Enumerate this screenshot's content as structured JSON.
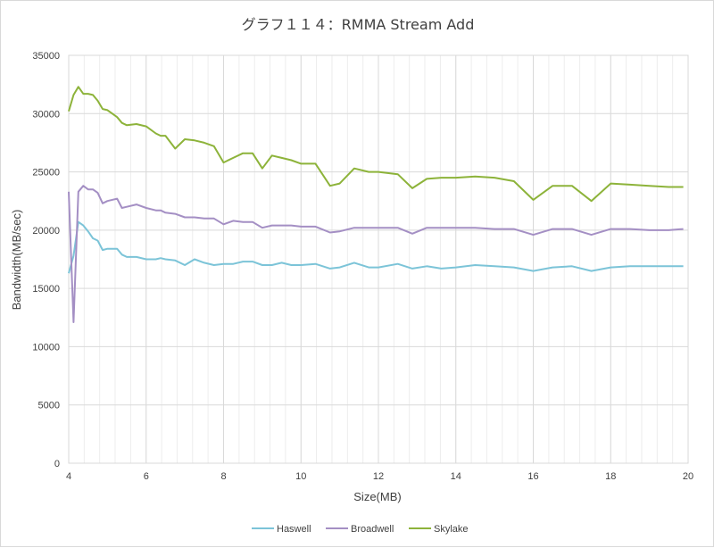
{
  "chart_data": {
    "type": "line",
    "title": "グラフ１１４：RMMA Stream Add",
    "xlabel": "Size(MB)",
    "ylabel": "Bandwidth(MB/sec)",
    "xlim": [
      4,
      20
    ],
    "ylim": [
      0,
      35000
    ],
    "x_ticks": [
      4,
      6,
      8,
      10,
      12,
      14,
      16,
      18,
      20
    ],
    "y_ticks": [
      0,
      5000,
      10000,
      15000,
      20000,
      25000,
      30000,
      35000
    ],
    "grid": true,
    "legend_position": "bottom",
    "series": [
      {
        "name": "Haswell",
        "color": "#7cc4d8",
        "points": [
          [
            4.0,
            16300
          ],
          [
            4.125,
            17800
          ],
          [
            4.25,
            20700
          ],
          [
            4.375,
            20400
          ],
          [
            4.5,
            19900
          ],
          [
            4.625,
            19300
          ],
          [
            4.75,
            19100
          ],
          [
            4.875,
            18300
          ],
          [
            5.0,
            18400
          ],
          [
            5.25,
            18400
          ],
          [
            5.375,
            17900
          ],
          [
            5.5,
            17700
          ],
          [
            5.75,
            17700
          ],
          [
            6.0,
            17500
          ],
          [
            6.25,
            17500
          ],
          [
            6.375,
            17600
          ],
          [
            6.5,
            17500
          ],
          [
            6.75,
            17400
          ],
          [
            7.0,
            17000
          ],
          [
            7.25,
            17500
          ],
          [
            7.5,
            17200
          ],
          [
            7.75,
            17000
          ],
          [
            8.0,
            17100
          ],
          [
            8.25,
            17100
          ],
          [
            8.5,
            17300
          ],
          [
            8.75,
            17300
          ],
          [
            9.0,
            17000
          ],
          [
            9.25,
            17000
          ],
          [
            9.5,
            17200
          ],
          [
            9.75,
            17000
          ],
          [
            10.0,
            17000
          ],
          [
            10.375,
            17100
          ],
          [
            10.75,
            16700
          ],
          [
            11.0,
            16800
          ],
          [
            11.375,
            17200
          ],
          [
            11.75,
            16800
          ],
          [
            12.0,
            16800
          ],
          [
            12.5,
            17100
          ],
          [
            12.875,
            16700
          ],
          [
            13.25,
            16900
          ],
          [
            13.625,
            16700
          ],
          [
            14.0,
            16800
          ],
          [
            14.5,
            17000
          ],
          [
            15.0,
            16900
          ],
          [
            15.5,
            16800
          ],
          [
            16.0,
            16500
          ],
          [
            16.5,
            16800
          ],
          [
            17.0,
            16900
          ],
          [
            17.5,
            16500
          ],
          [
            18.0,
            16800
          ],
          [
            18.5,
            16900
          ],
          [
            19.0,
            16900
          ],
          [
            19.5,
            16900
          ],
          [
            19.875,
            16900
          ]
        ]
      },
      {
        "name": "Broadwell",
        "color": "#a48fc4",
        "points": [
          [
            4.0,
            23300
          ],
          [
            4.125,
            12100
          ],
          [
            4.25,
            23300
          ],
          [
            4.375,
            23800
          ],
          [
            4.5,
            23500
          ],
          [
            4.625,
            23500
          ],
          [
            4.75,
            23200
          ],
          [
            4.875,
            22300
          ],
          [
            5.0,
            22500
          ],
          [
            5.25,
            22700
          ],
          [
            5.375,
            21900
          ],
          [
            5.5,
            22000
          ],
          [
            5.75,
            22200
          ],
          [
            6.0,
            21900
          ],
          [
            6.25,
            21700
          ],
          [
            6.375,
            21700
          ],
          [
            6.5,
            21500
          ],
          [
            6.75,
            21400
          ],
          [
            7.0,
            21100
          ],
          [
            7.25,
            21100
          ],
          [
            7.5,
            21000
          ],
          [
            7.75,
            21000
          ],
          [
            8.0,
            20500
          ],
          [
            8.25,
            20800
          ],
          [
            8.5,
            20700
          ],
          [
            8.75,
            20700
          ],
          [
            9.0,
            20200
          ],
          [
            9.25,
            20400
          ],
          [
            9.5,
            20400
          ],
          [
            9.75,
            20400
          ],
          [
            10.0,
            20300
          ],
          [
            10.375,
            20300
          ],
          [
            10.75,
            19800
          ],
          [
            11.0,
            19900
          ],
          [
            11.375,
            20200
          ],
          [
            11.75,
            20200
          ],
          [
            12.0,
            20200
          ],
          [
            12.5,
            20200
          ],
          [
            12.875,
            19700
          ],
          [
            13.25,
            20200
          ],
          [
            13.625,
            20200
          ],
          [
            14.0,
            20200
          ],
          [
            14.5,
            20200
          ],
          [
            15.0,
            20100
          ],
          [
            15.5,
            20100
          ],
          [
            16.0,
            19600
          ],
          [
            16.5,
            20100
          ],
          [
            17.0,
            20100
          ],
          [
            17.5,
            19600
          ],
          [
            18.0,
            20100
          ],
          [
            18.5,
            20100
          ],
          [
            19.0,
            20000
          ],
          [
            19.5,
            20000
          ],
          [
            19.875,
            20100
          ]
        ]
      },
      {
        "name": "Skylake",
        "color": "#8db33a",
        "points": [
          [
            4.0,
            30200
          ],
          [
            4.125,
            31600
          ],
          [
            4.25,
            32300
          ],
          [
            4.375,
            31700
          ],
          [
            4.5,
            31700
          ],
          [
            4.625,
            31600
          ],
          [
            4.75,
            31100
          ],
          [
            4.875,
            30400
          ],
          [
            5.0,
            30300
          ],
          [
            5.25,
            29700
          ],
          [
            5.375,
            29200
          ],
          [
            5.5,
            29000
          ],
          [
            5.75,
            29100
          ],
          [
            6.0,
            28900
          ],
          [
            6.25,
            28300
          ],
          [
            6.375,
            28100
          ],
          [
            6.5,
            28100
          ],
          [
            6.75,
            27000
          ],
          [
            7.0,
            27800
          ],
          [
            7.25,
            27700
          ],
          [
            7.5,
            27500
          ],
          [
            7.75,
            27200
          ],
          [
            8.0,
            25800
          ],
          [
            8.25,
            26200
          ],
          [
            8.5,
            26600
          ],
          [
            8.75,
            26600
          ],
          [
            9.0,
            25300
          ],
          [
            9.25,
            26400
          ],
          [
            9.5,
            26200
          ],
          [
            9.75,
            26000
          ],
          [
            10.0,
            25700
          ],
          [
            10.375,
            25700
          ],
          [
            10.75,
            23800
          ],
          [
            11.0,
            24000
          ],
          [
            11.375,
            25300
          ],
          [
            11.75,
            25000
          ],
          [
            12.0,
            25000
          ],
          [
            12.5,
            24800
          ],
          [
            12.875,
            23600
          ],
          [
            13.25,
            24400
          ],
          [
            13.625,
            24500
          ],
          [
            14.0,
            24500
          ],
          [
            14.5,
            24600
          ],
          [
            15.0,
            24500
          ],
          [
            15.5,
            24200
          ],
          [
            16.0,
            22600
          ],
          [
            16.5,
            23800
          ],
          [
            17.0,
            23800
          ],
          [
            17.5,
            22500
          ],
          [
            18.0,
            24000
          ],
          [
            18.5,
            23900
          ],
          [
            19.0,
            23800
          ],
          [
            19.5,
            23700
          ],
          [
            19.875,
            23700
          ]
        ]
      }
    ]
  }
}
